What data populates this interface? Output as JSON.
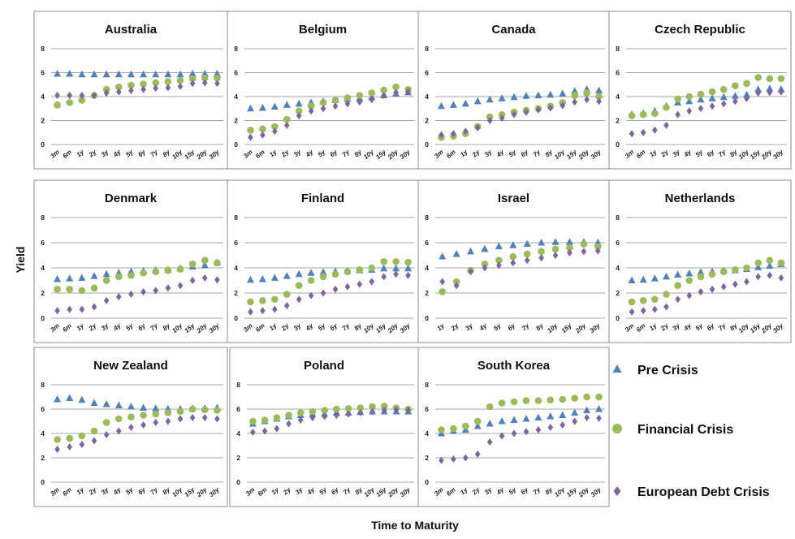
{
  "chart_data": {
    "type": "scatter",
    "y_axis_label": "Yield",
    "x_axis_label": "Time to Maturity",
    "ylim": [
      0,
      8
    ],
    "y_ticks": [
      0,
      2,
      4,
      6,
      8
    ],
    "grid": "horizontal",
    "legend_position": "bottom-right",
    "series_styles": [
      {
        "name": "Pre Crisis",
        "color": "#4f81bd",
        "marker": "triangle"
      },
      {
        "name": "Financial Crisis",
        "color": "#9bbb59",
        "marker": "circle"
      },
      {
        "name": "European Debt Crisis",
        "color": "#8064a2",
        "marker": "diamond"
      }
    ],
    "panels": [
      {
        "title": "Australia",
        "categories": [
          "3m",
          "6m",
          "1y",
          "2y",
          "3y",
          "4y",
          "5y",
          "6y",
          "7y",
          "8y",
          "10y",
          "15y",
          "20y",
          "30y"
        ],
        "series": [
          {
            "name": "Pre Crisis",
            "values": [
              5.9,
              5.9,
              5.85,
              5.85,
              5.85,
              5.85,
              5.85,
              5.85,
              5.85,
              5.85,
              5.85,
              5.9,
              5.9,
              5.9
            ]
          },
          {
            "name": "Financial Crisis",
            "values": [
              3.3,
              3.5,
              3.7,
              4.1,
              4.6,
              4.8,
              4.95,
              5.05,
              5.15,
              5.25,
              5.35,
              5.5,
              5.55,
              5.55
            ]
          },
          {
            "name": "European Debt Crisis",
            "values": [
              4.1,
              4.1,
              4.1,
              4.1,
              4.3,
              4.4,
              4.5,
              4.6,
              4.7,
              4.75,
              4.85,
              5.1,
              5.15,
              5.1
            ]
          }
        ]
      },
      {
        "title": "Belgium",
        "categories": [
          "3m",
          "6m",
          "1y",
          "2y",
          "3y",
          "4y",
          "5y",
          "6y",
          "7y",
          "8y",
          "10y",
          "15y",
          "20y",
          "30y"
        ],
        "series": [
          {
            "name": "Pre Crisis",
            "values": [
              3.0,
              3.05,
              3.15,
              3.3,
              3.4,
              3.5,
              3.6,
              3.7,
              3.8,
              3.85,
              3.95,
              4.1,
              4.25,
              4.35
            ]
          },
          {
            "name": "Financial Crisis",
            "values": [
              1.2,
              1.3,
              1.5,
              2.1,
              2.8,
              3.2,
              3.5,
              3.7,
              3.9,
              4.1,
              4.3,
              4.55,
              4.8,
              4.6
            ]
          },
          {
            "name": "European Debt Crisis",
            "values": [
              0.6,
              0.8,
              1.1,
              1.6,
              2.4,
              2.8,
              3.0,
              3.2,
              3.4,
              3.55,
              3.75,
              4.1,
              4.35,
              4.4
            ]
          }
        ]
      },
      {
        "title": "Canada",
        "categories": [
          "3m",
          "6m",
          "1y",
          "2y",
          "3y",
          "4y",
          "5y",
          "6y",
          "7y",
          "8y",
          "10y",
          "15y",
          "20y",
          "30y"
        ],
        "series": [
          {
            "name": "Pre Crisis",
            "values": [
              3.2,
              3.3,
              3.4,
              3.6,
              3.75,
              3.85,
              3.95,
              4.05,
              4.1,
              4.15,
              4.25,
              4.45,
              4.6,
              4.5
            ]
          },
          {
            "name": "Financial Crisis",
            "values": [
              0.6,
              0.7,
              0.9,
              1.5,
              2.3,
              2.5,
              2.7,
              2.85,
              3.0,
              3.2,
              3.5,
              4.1,
              4.3,
              4.0
            ]
          },
          {
            "name": "European Debt Crisis",
            "values": [
              0.8,
              0.9,
              1.1,
              1.4,
              2.0,
              2.2,
              2.5,
              2.7,
              2.9,
              3.05,
              3.25,
              3.55,
              3.75,
              3.6
            ]
          }
        ]
      },
      {
        "title": "Czech Republic",
        "categories": [
          "3m",
          "6m",
          "1y",
          "2y",
          "3y",
          "4y",
          "5y",
          "6y",
          "7y",
          "8y",
          "10y",
          "15y",
          "20y",
          "30y"
        ],
        "series": [
          {
            "name": "Pre Crisis",
            "values": [
              2.5,
              2.6,
              2.8,
              3.2,
              3.5,
              3.6,
              3.75,
              3.85,
              3.95,
              4.05,
              4.15,
              4.6,
              4.65,
              4.6
            ]
          },
          {
            "name": "Financial Crisis",
            "values": [
              2.4,
              2.5,
              2.6,
              3.1,
              3.8,
              4.0,
              4.2,
              4.4,
              4.6,
              4.9,
              5.1,
              5.6,
              5.5,
              5.5
            ]
          },
          {
            "name": "European Debt Crisis",
            "values": [
              0.9,
              1.0,
              1.2,
              1.6,
              2.5,
              2.8,
              3.0,
              3.2,
              3.4,
              3.6,
              3.85,
              4.3,
              4.35,
              4.4
            ]
          }
        ]
      },
      {
        "title": "Denmark",
        "categories": [
          "3m",
          "6m",
          "1y",
          "2y",
          "3y",
          "4y",
          "5y",
          "6y",
          "7y",
          "8y",
          "10y",
          "15y",
          "20y",
          "30y"
        ],
        "series": [
          {
            "name": "Pre Crisis",
            "values": [
              3.1,
              3.15,
              3.2,
              3.35,
              3.5,
              3.6,
              3.7,
              3.75,
              3.8,
              3.85,
              3.95,
              4.1,
              4.2,
              4.4
            ]
          },
          {
            "name": "Financial Crisis",
            "values": [
              2.3,
              2.3,
              2.2,
              2.4,
              3.0,
              3.3,
              3.4,
              3.6,
              3.7,
              3.8,
              3.9,
              4.3,
              4.6,
              4.4
            ]
          },
          {
            "name": "European Debt Crisis",
            "values": [
              0.6,
              0.7,
              0.7,
              0.9,
              1.4,
              1.7,
              1.9,
              2.1,
              2.2,
              2.4,
              2.6,
              3.0,
              3.2,
              3.05
            ]
          }
        ]
      },
      {
        "title": "Finland",
        "categories": [
          "3m",
          "6m",
          "1y",
          "2y",
          "3y",
          "4y",
          "5y",
          "6y",
          "7y",
          "8y",
          "10y",
          "15y",
          "20y",
          "30y"
        ],
        "series": [
          {
            "name": "Pre Crisis",
            "values": [
              3.05,
              3.1,
              3.2,
              3.35,
              3.5,
              3.6,
              3.65,
              3.7,
              3.75,
              3.8,
              3.85,
              3.95,
              3.95,
              3.95
            ]
          },
          {
            "name": "Financial Crisis",
            "values": [
              1.3,
              1.4,
              1.5,
              1.9,
              2.6,
              3.0,
              3.3,
              3.5,
              3.7,
              3.85,
              4.0,
              4.5,
              4.5,
              4.45
            ]
          },
          {
            "name": "European Debt Crisis",
            "values": [
              0.5,
              0.6,
              0.7,
              1.0,
              1.5,
              1.8,
              2.0,
              2.3,
              2.5,
              2.7,
              2.9,
              3.3,
              3.5,
              3.4
            ]
          }
        ]
      },
      {
        "title": "Israel",
        "categories": [
          "1y",
          "2y",
          "3y",
          "4y",
          "5y",
          "6y",
          "7y",
          "8y",
          "10y",
          "15y",
          "20y",
          "30y"
        ],
        "series": [
          {
            "name": "Pre Crisis",
            "values": [
              4.9,
              5.1,
              5.3,
              5.5,
              5.7,
              5.8,
              5.9,
              6.0,
              6.05,
              6.05,
              6.05,
              6.0
            ]
          },
          {
            "name": "Financial Crisis",
            "values": [
              2.1,
              2.9,
              3.8,
              4.3,
              4.6,
              4.9,
              5.1,
              5.3,
              5.5,
              5.6,
              5.9,
              5.7
            ]
          },
          {
            "name": "European Debt Crisis",
            "values": [
              2.9,
              2.6,
              3.7,
              4.0,
              4.2,
              4.4,
              4.6,
              4.8,
              5.0,
              5.2,
              5.3,
              5.35
            ]
          }
        ]
      },
      {
        "title": "Netherlands",
        "categories": [
          "3m",
          "6m",
          "1y",
          "2y",
          "3y",
          "4y",
          "5y",
          "6y",
          "7y",
          "8y",
          "10y",
          "15y",
          "20y",
          "30y"
        ],
        "series": [
          {
            "name": "Pre Crisis",
            "values": [
              3.0,
              3.05,
              3.15,
              3.3,
              3.45,
              3.55,
              3.65,
              3.7,
              3.75,
              3.8,
              3.9,
              4.05,
              4.15,
              4.3
            ]
          },
          {
            "name": "Financial Crisis",
            "values": [
              1.3,
              1.4,
              1.5,
              1.9,
              2.6,
              3.0,
              3.3,
              3.5,
              3.7,
              3.85,
              4.0,
              4.4,
              4.6,
              4.4
            ]
          },
          {
            "name": "European Debt Crisis",
            "values": [
              0.5,
              0.6,
              0.7,
              0.9,
              1.5,
              1.8,
              2.1,
              2.3,
              2.5,
              2.7,
              2.9,
              3.3,
              3.4,
              3.2
            ]
          }
        ]
      },
      {
        "title": "New Zealand",
        "categories": [
          "3m",
          "6m",
          "1y",
          "2y",
          "3y",
          "4y",
          "5y",
          "6y",
          "7y",
          "8y",
          "10y",
          "15y",
          "20y",
          "30y"
        ],
        "series": [
          {
            "name": "Pre Crisis",
            "values": [
              6.8,
              6.9,
              6.75,
              6.5,
              6.4,
              6.3,
              6.2,
              6.1,
              6.05,
              6.0,
              6.0,
              6.05,
              6.05,
              6.1
            ]
          },
          {
            "name": "Financial Crisis",
            "values": [
              3.5,
              3.6,
              3.8,
              4.2,
              4.9,
              5.2,
              5.35,
              5.5,
              5.6,
              5.7,
              5.8,
              6.0,
              5.95,
              5.9
            ]
          },
          {
            "name": "European Debt Crisis",
            "values": [
              2.7,
              2.9,
              3.1,
              3.4,
              3.9,
              4.2,
              4.5,
              4.7,
              4.9,
              5.0,
              5.2,
              5.3,
              5.3,
              5.2
            ]
          }
        ]
      },
      {
        "title": "Poland",
        "categories": [
          "3m",
          "6m",
          "1y",
          "2y",
          "3y",
          "4y",
          "5y",
          "6y",
          "7y",
          "8y",
          "10y",
          "15y",
          "20y",
          "30y"
        ],
        "series": [
          {
            "name": "Pre Crisis",
            "values": [
              4.8,
              5.0,
              5.2,
              5.4,
              5.5,
              5.6,
              5.6,
              5.7,
              5.7,
              5.75,
              5.8,
              5.8,
              5.8,
              5.8
            ]
          },
          {
            "name": "Financial Crisis",
            "values": [
              5.0,
              5.1,
              5.3,
              5.5,
              5.7,
              5.8,
              5.9,
              6.0,
              6.05,
              6.1,
              6.2,
              6.25,
              6.1,
              6.0
            ]
          },
          {
            "name": "European Debt Crisis",
            "values": [
              4.1,
              4.2,
              4.4,
              4.8,
              5.1,
              5.3,
              5.4,
              5.5,
              5.6,
              5.7,
              5.8,
              5.9,
              5.95,
              5.9
            ]
          }
        ]
      },
      {
        "title": "South Korea",
        "categories": [
          "3m",
          "6m",
          "1y",
          "2y",
          "3y",
          "4y",
          "5y",
          "6y",
          "7y",
          "8y",
          "10y",
          "15y",
          "20y",
          "30y"
        ],
        "series": [
          {
            "name": "Pre Crisis",
            "values": [
              4.0,
              4.2,
              4.3,
              4.6,
              4.8,
              5.0,
              5.1,
              5.2,
              5.3,
              5.4,
              5.5,
              5.7,
              5.9,
              6.0
            ]
          },
          {
            "name": "Financial Crisis",
            "values": [
              4.3,
              4.4,
              4.6,
              5.0,
              6.2,
              6.5,
              6.6,
              6.7,
              6.7,
              6.75,
              6.8,
              6.9,
              7.0,
              7.0
            ]
          },
          {
            "name": "European Debt Crisis",
            "values": [
              1.8,
              1.9,
              2.0,
              2.3,
              3.3,
              3.8,
              4.0,
              4.15,
              4.3,
              4.5,
              4.7,
              5.0,
              5.3,
              5.25
            ]
          }
        ]
      }
    ]
  }
}
